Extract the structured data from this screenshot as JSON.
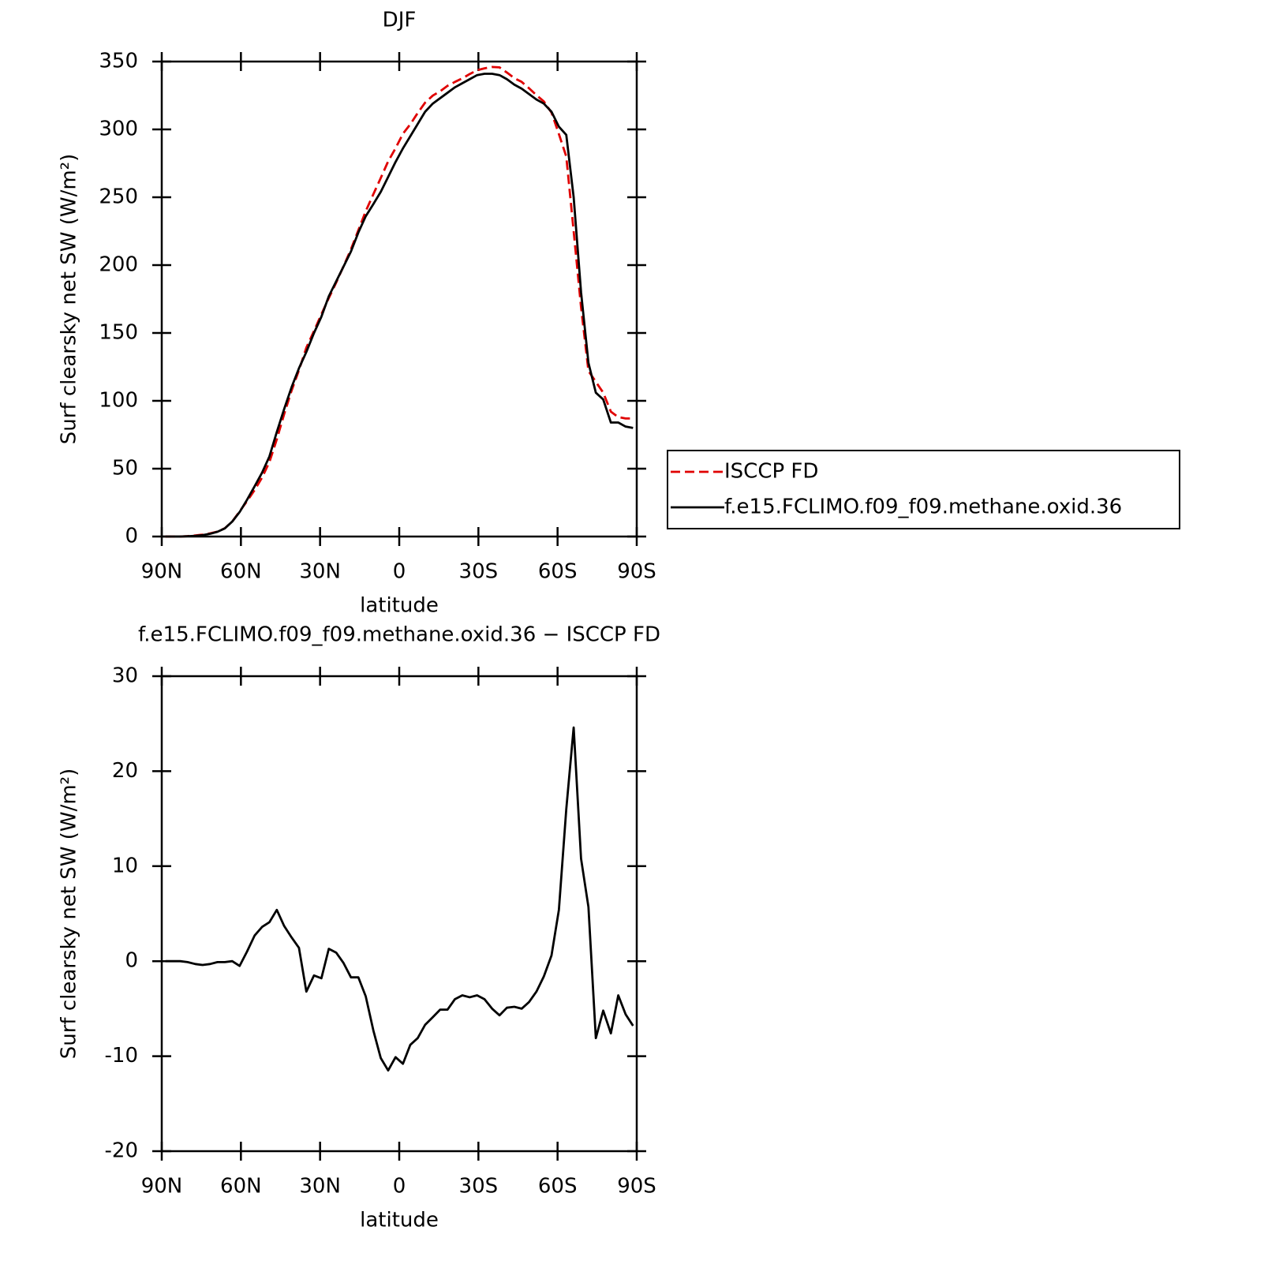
{
  "chart_data": [
    {
      "type": "line",
      "title": "DJF",
      "xlabel": "latitude",
      "ylabel": "Surf clearsky net SW (W/m²)",
      "x": [
        88.6,
        85.8,
        83.0,
        80.2,
        77.3,
        74.5,
        71.7,
        68.9,
        66.1,
        63.3,
        60.5,
        57.7,
        54.8,
        52.0,
        49.2,
        46.4,
        43.6,
        40.8,
        38.0,
        35.2,
        32.3,
        29.5,
        26.7,
        23.9,
        21.1,
        18.3,
        15.5,
        12.7,
        9.8,
        7.0,
        4.2,
        1.4,
        -1.4,
        -4.2,
        -7.0,
        -9.8,
        -12.7,
        -15.5,
        -18.3,
        -21.1,
        -23.9,
        -26.7,
        -29.5,
        -32.3,
        -35.2,
        -38.0,
        -40.8,
        -43.6,
        -46.4,
        -49.2,
        -52.0,
        -54.8,
        -57.7,
        -60.5,
        -63.3,
        -66.1,
        -68.9,
        -71.7,
        -74.5,
        -77.3,
        -80.2,
        -83.0,
        -85.8,
        -88.6
      ],
      "series": [
        {
          "name": "ISCCP FD",
          "color": "#e00000",
          "line_style": "dashed",
          "values": [
            0,
            0,
            0,
            0.3,
            0.8,
            1.4,
            2.3,
            3.6,
            6.1,
            11,
            18.5,
            26,
            34.3,
            43.4,
            54.9,
            71.6,
            90.3,
            107.5,
            122.6,
            139.2,
            151.5,
            163.8,
            175.7,
            187.1,
            199.2,
            211.7,
            225.7,
            239.7,
            252.3,
            264.2,
            276.5,
            286.1,
            296.8,
            303.8,
            312.1,
            319.7,
            324.9,
            328.1,
            332.1,
            335,
            337.6,
            340.8,
            343.6,
            345,
            346,
            345.7,
            341.9,
            337.8,
            335,
            330.3,
            325.2,
            320.6,
            312.4,
            296.6,
            280,
            225,
            169,
            122,
            114,
            106,
            92,
            88,
            87,
            87
          ]
        },
        {
          "name": "f.e15.FCLIMO.f09_f09.methane.oxid.36",
          "color": "#000000",
          "line_style": "solid",
          "values": [
            0,
            0,
            0,
            0.2,
            0.5,
            1,
            2,
            3.5,
            6,
            11,
            18,
            27,
            37,
            47,
            59,
            77,
            94,
            110,
            124,
            136,
            150,
            162,
            177,
            188,
            199,
            210,
            224,
            236,
            245,
            254,
            265,
            276,
            286,
            295,
            304,
            313,
            319,
            323,
            327,
            331,
            334,
            337,
            340,
            341,
            341,
            340,
            337,
            333,
            330,
            326,
            322,
            319,
            313,
            302,
            296,
            250,
            180,
            128,
            106,
            101,
            84,
            84,
            81,
            80
          ]
        }
      ],
      "xlim": [
        90,
        -90
      ],
      "xticks": [
        {
          "value": 90,
          "label": "90N"
        },
        {
          "value": 60,
          "label": "60N"
        },
        {
          "value": 30,
          "label": "30N"
        },
        0,
        {
          "value": -30,
          "label": "30S"
        },
        {
          "value": -60,
          "label": "60S"
        },
        {
          "value": -90,
          "label": "90S"
        }
      ],
      "ylim": [
        0,
        350
      ],
      "yticks": [
        0,
        50,
        100,
        150,
        200,
        250,
        300,
        350
      ],
      "grid": false,
      "legend": "right"
    },
    {
      "type": "line",
      "title": "f.e15.FCLIMO.f09_f09.methane.oxid.36 − ISCCP FD",
      "xlabel": "latitude",
      "ylabel": "Surf clearsky net SW (W/m²)",
      "x": [
        88.6,
        85.8,
        83.0,
        80.2,
        77.3,
        74.5,
        71.7,
        68.9,
        66.1,
        63.3,
        60.5,
        57.7,
        54.8,
        52.0,
        49.2,
        46.4,
        43.6,
        40.8,
        38.0,
        35.2,
        32.3,
        29.5,
        26.7,
        23.9,
        21.1,
        18.3,
        15.5,
        12.7,
        9.8,
        7.0,
        4.2,
        1.4,
        -1.4,
        -4.2,
        -7.0,
        -9.8,
        -12.7,
        -15.5,
        -18.3,
        -21.1,
        -23.9,
        -26.7,
        -29.5,
        -32.3,
        -35.2,
        -38.0,
        -40.8,
        -43.6,
        -46.4,
        -49.2,
        -52.0,
        -54.8,
        -57.7,
        -60.5,
        -63.3,
        -66.1,
        -68.9,
        -71.7,
        -74.5,
        -77.3,
        -80.2,
        -83.0,
        -85.8,
        -88.6
      ],
      "series": [
        {
          "color": "#000000",
          "line_style": "solid",
          "values": [
            0,
            0,
            0,
            -0.1,
            -0.3,
            -0.4,
            -0.3,
            -0.1,
            -0.1,
            0,
            -0.5,
            1.0,
            2.7,
            3.6,
            4.1,
            5.4,
            3.7,
            2.5,
            1.4,
            -3.2,
            -1.5,
            -1.8,
            1.3,
            0.9,
            -0.2,
            -1.7,
            -1.7,
            -3.7,
            -7.3,
            -10.2,
            -11.5,
            -10.1,
            -10.8,
            -8.8,
            -8.1,
            -6.7,
            -5.9,
            -5.1,
            -5.1,
            -4.0,
            -3.6,
            -3.8,
            -3.6,
            -4.0,
            -5.0,
            -5.7,
            -4.9,
            -4.8,
            -5.0,
            -4.3,
            -3.2,
            -1.6,
            0.6,
            5.4,
            16,
            24.6,
            10.8,
            5.7,
            -8.1,
            -5.2,
            -7.6,
            -3.6,
            -5.6,
            -6.8
          ]
        }
      ],
      "xlim": [
        90,
        -90
      ],
      "xticks": [
        {
          "value": 90,
          "label": "90N"
        },
        {
          "value": 60,
          "label": "60N"
        },
        {
          "value": 30,
          "label": "30N"
        },
        0,
        {
          "value": -30,
          "label": "30S"
        },
        {
          "value": -60,
          "label": "60S"
        },
        {
          "value": -90,
          "label": "90S"
        }
      ],
      "ylim": [
        -20,
        30
      ],
      "yticks": [
        -20,
        -10,
        0,
        10,
        20,
        30
      ],
      "grid": false
    }
  ]
}
